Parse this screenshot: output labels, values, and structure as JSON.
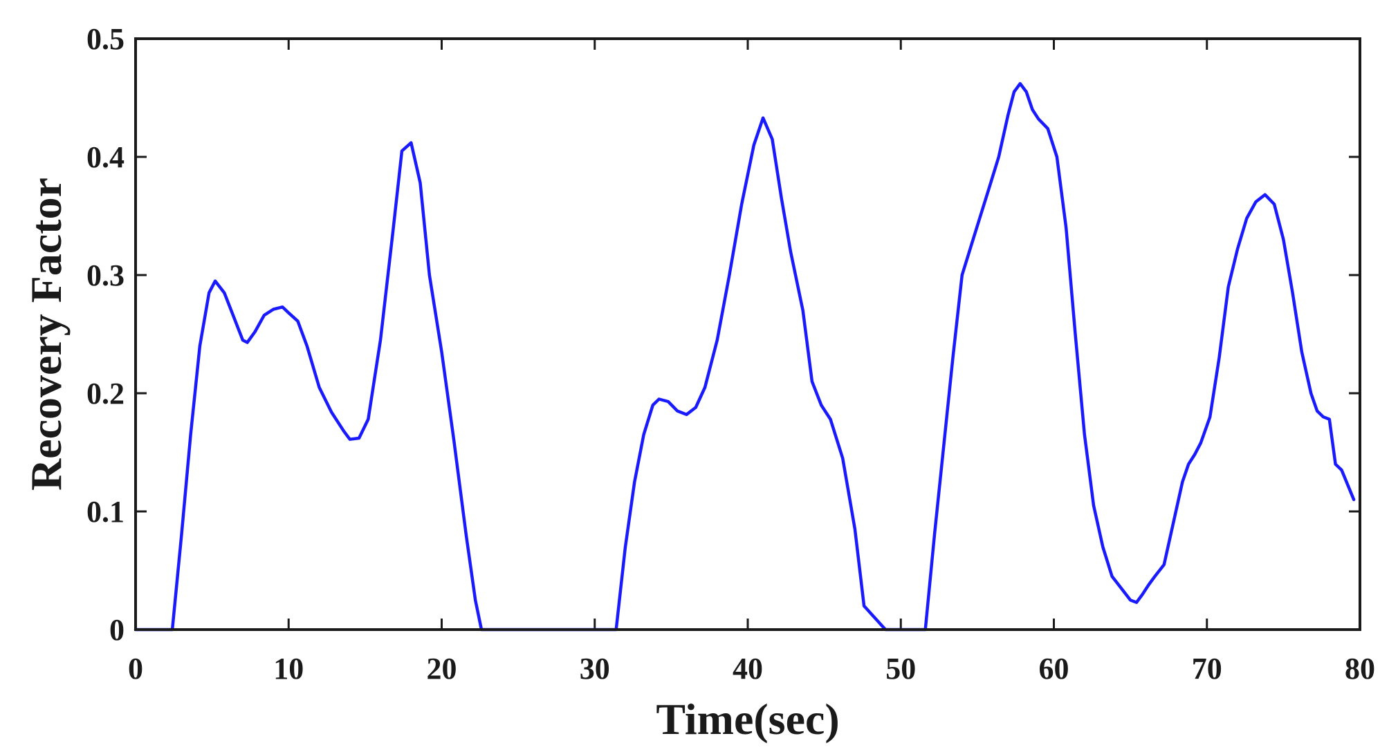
{
  "chart_data": {
    "type": "line",
    "title": "",
    "xlabel": "Time(sec)",
    "ylabel": "Recovery Factor",
    "xlim": [
      0,
      80
    ],
    "ylim": [
      0,
      0.5
    ],
    "xticks": [
      0,
      10,
      20,
      30,
      40,
      50,
      60,
      70,
      80
    ],
    "yticks": [
      0,
      0.1,
      0.2,
      0.3,
      0.4,
      0.5
    ],
    "xtick_labels": [
      "0",
      "10",
      "20",
      "30",
      "40",
      "50",
      "60",
      "70",
      "80"
    ],
    "ytick_labels": [
      "0",
      "0.1",
      "0.2",
      "0.3",
      "0.4",
      "0.5"
    ],
    "grid": false,
    "legend": "none",
    "line_color": "#1a1aff",
    "series": [
      {
        "x": [
          0,
          2.4,
          3.0,
          3.6,
          4.2,
          4.8,
          5.2,
          5.8,
          6.4,
          7.0,
          7.3,
          7.8,
          8.4,
          9.0,
          9.6,
          10.0,
          10.6,
          11.2,
          12.0,
          12.8,
          13.6,
          14.0,
          14.6,
          15.2,
          16.0,
          16.8,
          17.4,
          18.0,
          18.6,
          19.2,
          20.0,
          20.8,
          21.6,
          22.2,
          22.6,
          25.0,
          28.0,
          31.4,
          32.0,
          32.6,
          33.2,
          33.8,
          34.2,
          34.8,
          35.4,
          36.0,
          36.6,
          37.2,
          38.0,
          38.8,
          39.6,
          40.4,
          41.0,
          41.6,
          42.2,
          42.8,
          43.6,
          44.2,
          44.8,
          45.4,
          46.2,
          47.0,
          47.6,
          49.0,
          51.6,
          52.2,
          52.8,
          53.4,
          54.0,
          54.6,
          55.2,
          55.8,
          56.4,
          57.0,
          57.4,
          57.8,
          58.2,
          58.6,
          59.0,
          59.6,
          60.2,
          60.8,
          61.4,
          62.0,
          62.6,
          63.2,
          63.8,
          64.4,
          65.0,
          65.4,
          65.8,
          66.2,
          66.6,
          67.2,
          67.8,
          68.4,
          68.8,
          69.2,
          69.6,
          70.2,
          70.8,
          71.4,
          72.0,
          72.6,
          73.2,
          73.8,
          74.4,
          75.0,
          75.6,
          76.2,
          76.8,
          77.2,
          77.6,
          78.0,
          78.4,
          78.8,
          79.6
        ],
        "y": [
          0,
          0,
          0.08,
          0.165,
          0.24,
          0.285,
          0.295,
          0.285,
          0.265,
          0.245,
          0.243,
          0.252,
          0.266,
          0.271,
          0.273,
          0.268,
          0.261,
          0.24,
          0.205,
          0.184,
          0.168,
          0.161,
          0.162,
          0.178,
          0.245,
          0.335,
          0.405,
          0.412,
          0.378,
          0.3,
          0.235,
          0.16,
          0.08,
          0.025,
          0,
          0,
          0,
          0,
          0.07,
          0.125,
          0.165,
          0.19,
          0.195,
          0.193,
          0.185,
          0.182,
          0.188,
          0.205,
          0.245,
          0.3,
          0.36,
          0.41,
          0.433,
          0.415,
          0.365,
          0.32,
          0.27,
          0.21,
          0.19,
          0.178,
          0.145,
          0.085,
          0.02,
          0,
          0,
          0.08,
          0.155,
          0.23,
          0.3,
          0.325,
          0.35,
          0.375,
          0.4,
          0.435,
          0.455,
          0.462,
          0.455,
          0.44,
          0.432,
          0.424,
          0.4,
          0.34,
          0.25,
          0.165,
          0.105,
          0.07,
          0.045,
          0.035,
          0.025,
          0.023,
          0.03,
          0.038,
          0.045,
          0.055,
          0.09,
          0.125,
          0.14,
          0.148,
          0.158,
          0.18,
          0.23,
          0.29,
          0.322,
          0.348,
          0.362,
          0.368,
          0.36,
          0.33,
          0.285,
          0.235,
          0.2,
          0.185,
          0.18,
          0.178,
          0.14,
          0.135,
          0.11
        ]
      }
    ]
  }
}
